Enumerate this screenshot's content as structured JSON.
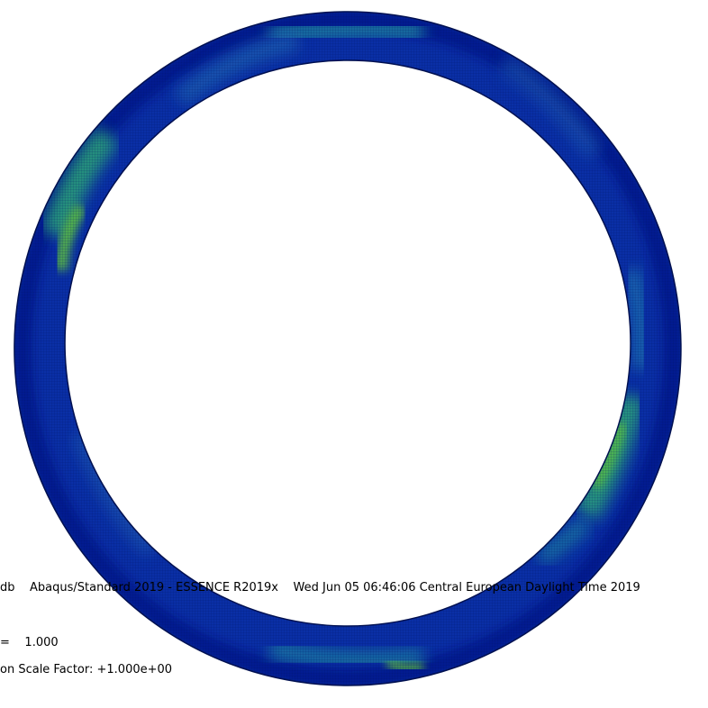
{
  "viewport": {
    "info_line": "db    Abaqus/Standard 2019 - ESSENCE R2019x    Wed Jun 05 06:46:06 Central European Daylight Time 2019",
    "step_time_line": "=    1.000",
    "deformation_scale_line": "on Scale Factor: +1.000e+00",
    "colors": {
      "background": "#ffffff",
      "contour_low": "#00118a",
      "contour_mid_low": "#0a3bb5",
      "contour_mid": "#1f6fa8",
      "contour_high": "#2fa08a",
      "contour_peak": "#5ec23c",
      "mesh_line": "#001060"
    }
  }
}
